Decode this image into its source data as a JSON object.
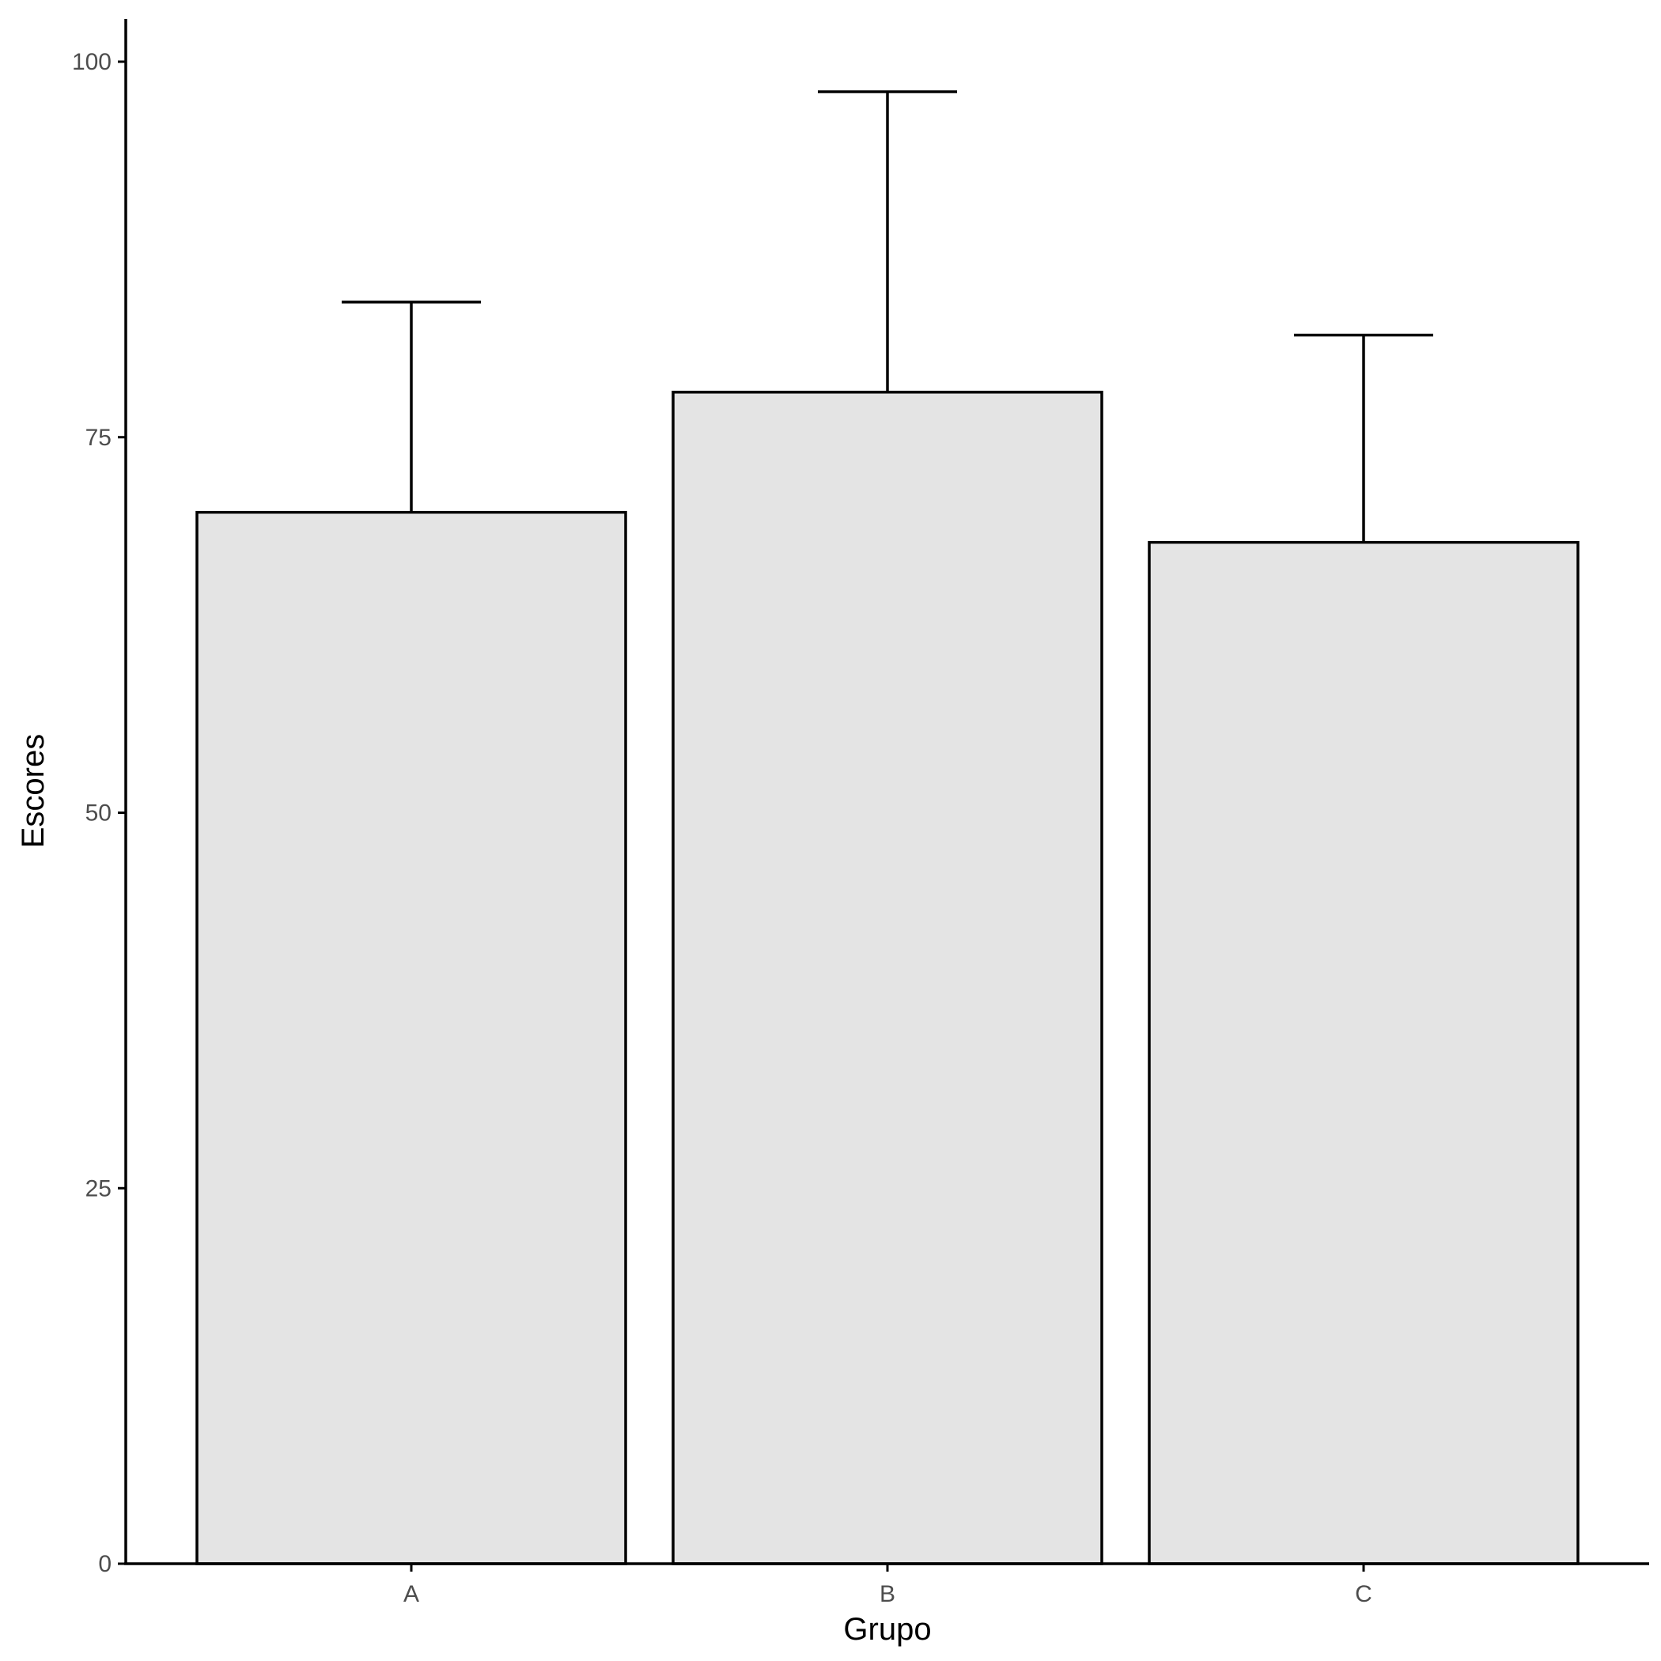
{
  "chart_data": {
    "type": "bar",
    "title": "",
    "xlabel": "Grupo",
    "ylabel": "Escores",
    "categories": [
      "A",
      "B",
      "C"
    ],
    "values": [
      70,
      78,
      68
    ],
    "error_upper": [
      84,
      98,
      81.8
    ],
    "ylim": [
      0,
      100
    ],
    "yticks": [
      0,
      25,
      50,
      75,
      100
    ],
    "grid": false,
    "legend": "none",
    "colors": {
      "bar_fill": "#e4e4e4",
      "bar_stroke": "#000000",
      "tick_text": "#4d4d4d"
    }
  }
}
